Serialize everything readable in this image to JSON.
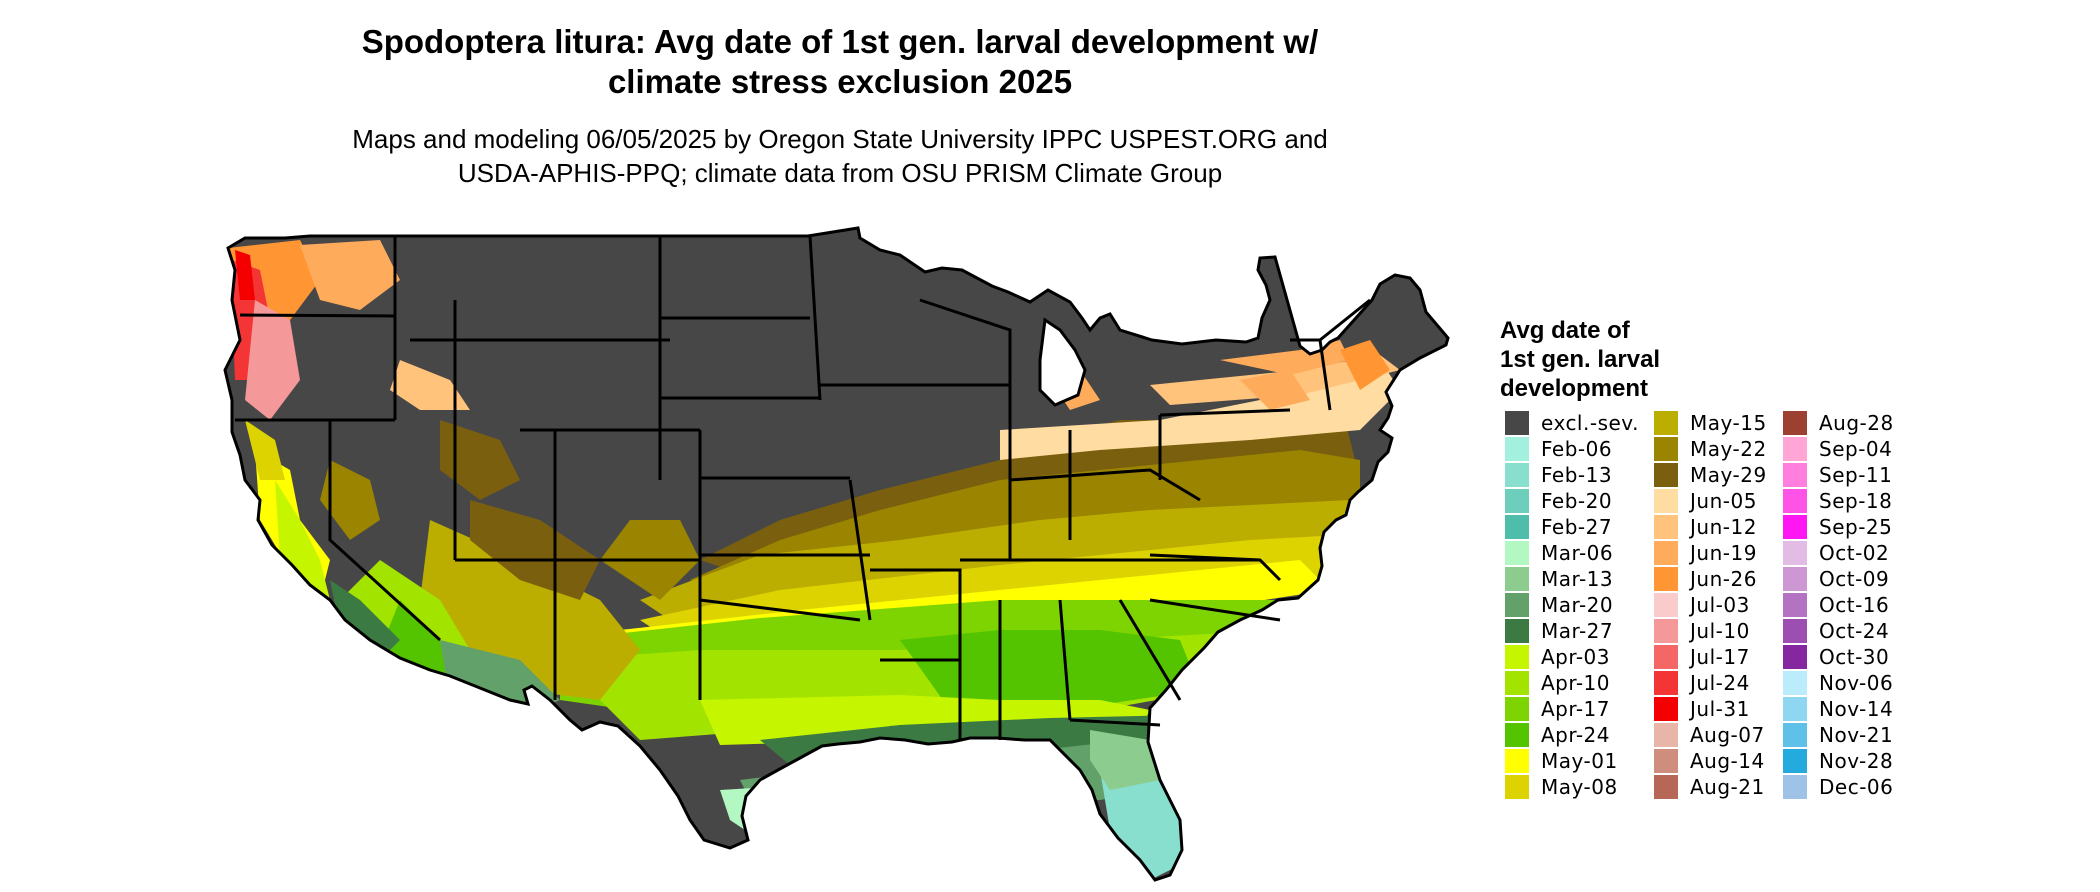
{
  "title": {
    "line1": "Spodoptera litura: Avg date of 1st gen. larval development w/",
    "line2": "climate stress exclusion 2025"
  },
  "subtitle": {
    "line1": "Maps and modeling 06/05/2025 by Oregon State University IPPC USPEST.ORG and",
    "line2": "USDA-APHIS-PPQ; climate data from OSU PRISM Climate Group"
  },
  "legend": {
    "title_line1": "Avg date of",
    "title_line2": "1st gen. larval",
    "title_line3": "development",
    "items": [
      {
        "label": "excl.-sev.",
        "color": "#474747"
      },
      {
        "label": "Feb-06",
        "color": "#a4f0de"
      },
      {
        "label": "Feb-13",
        "color": "#88dfcd"
      },
      {
        "label": "Feb-20",
        "color": "#6ccebb"
      },
      {
        "label": "Feb-27",
        "color": "#4ebdaa"
      },
      {
        "label": "Mar-06",
        "color": "#b3f7c2"
      },
      {
        "label": "Mar-13",
        "color": "#8ccc8e"
      },
      {
        "label": "Mar-20",
        "color": "#62a26a"
      },
      {
        "label": "Mar-27",
        "color": "#3c7a44"
      },
      {
        "label": "Apr-03",
        "color": "#c6f500"
      },
      {
        "label": "Apr-10",
        "color": "#a2e400"
      },
      {
        "label": "Apr-17",
        "color": "#7ed400"
      },
      {
        "label": "Apr-24",
        "color": "#55c400"
      },
      {
        "label": "May-01",
        "color": "#ffff00"
      },
      {
        "label": "May-08",
        "color": "#ddd300"
      },
      {
        "label": "May-15",
        "color": "#bcae00"
      },
      {
        "label": "May-22",
        "color": "#9a8400"
      },
      {
        "label": "May-29",
        "color": "#7a5f0e"
      },
      {
        "label": "Jun-05",
        "color": "#ffdca1"
      },
      {
        "label": "Jun-12",
        "color": "#ffc37c"
      },
      {
        "label": "Jun-19",
        "color": "#ffab5c"
      },
      {
        "label": "Jun-26",
        "color": "#ff9633"
      },
      {
        "label": "Jul-03",
        "color": "#f9cccb"
      },
      {
        "label": "Jul-10",
        "color": "#f49899"
      },
      {
        "label": "Jul-17",
        "color": "#f46766"
      },
      {
        "label": "Jul-24",
        "color": "#f43535"
      },
      {
        "label": "Jul-31",
        "color": "#f50000"
      },
      {
        "label": "Aug-07",
        "color": "#e8b6a8"
      },
      {
        "label": "Aug-14",
        "color": "#cf8d7e"
      },
      {
        "label": "Aug-21",
        "color": "#b66756"
      },
      {
        "label": "Aug-28",
        "color": "#9c4131"
      },
      {
        "label": "Sep-04",
        "color": "#ffa6d6"
      },
      {
        "label": "Sep-11",
        "color": "#ff7fde"
      },
      {
        "label": "Sep-18",
        "color": "#ff53e8"
      },
      {
        "label": "Sep-25",
        "color": "#ff17f3"
      },
      {
        "label": "Oct-02",
        "color": "#e2bce4"
      },
      {
        "label": "Oct-09",
        "color": "#cc97d3"
      },
      {
        "label": "Oct-16",
        "color": "#b373c2"
      },
      {
        "label": "Oct-24",
        "color": "#9c4eb1"
      },
      {
        "label": "Oct-30",
        "color": "#8427a0"
      },
      {
        "label": "Nov-06",
        "color": "#bbecfb"
      },
      {
        "label": "Nov-14",
        "color": "#8fd7f1"
      },
      {
        "label": "Nov-21",
        "color": "#5fc1e7"
      },
      {
        "label": "Nov-28",
        "color": "#25aadd"
      },
      {
        "label": "Dec-06",
        "color": "#9fc3e7"
      }
    ]
  }
}
